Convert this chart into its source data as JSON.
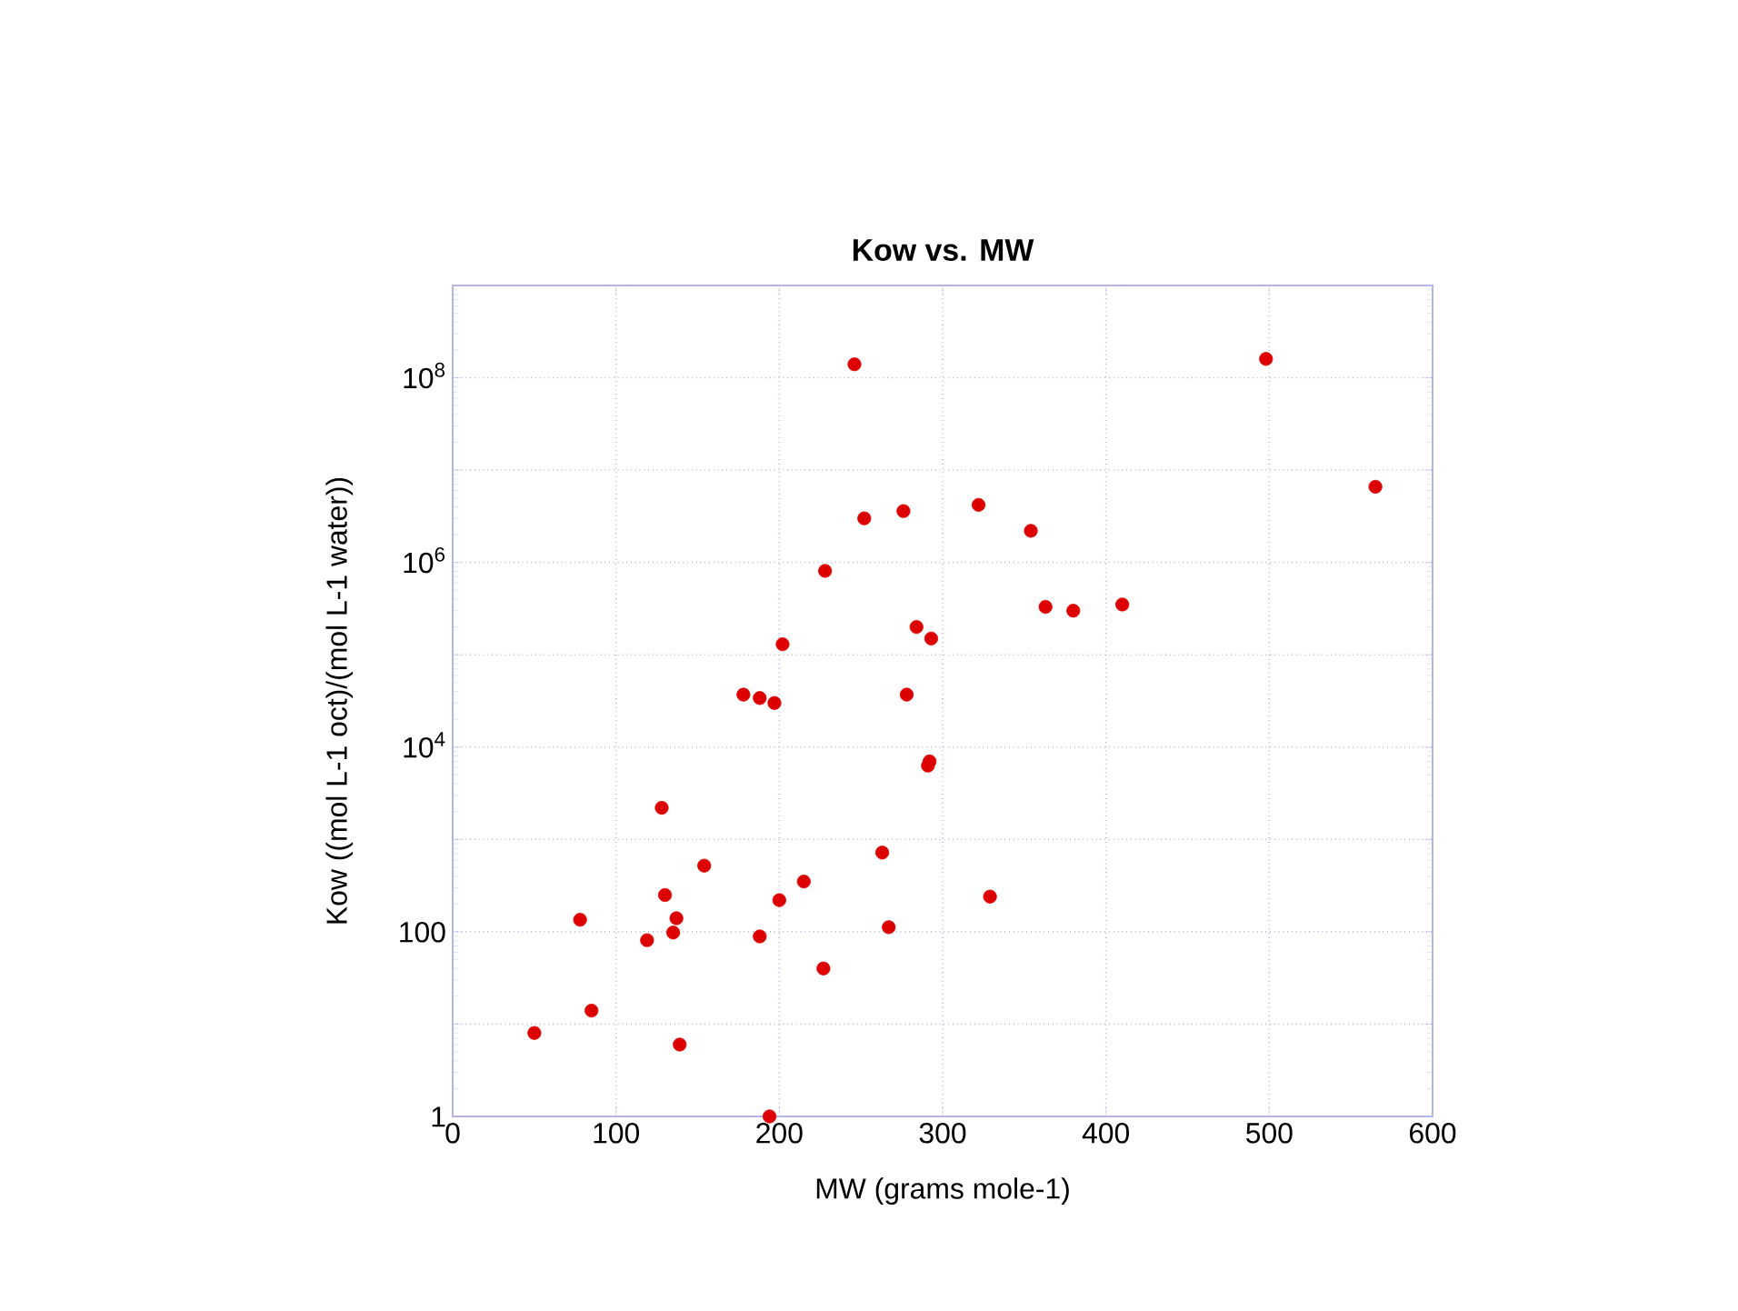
{
  "chart_data": {
    "type": "scatter",
    "title": "Kow vs. MW",
    "xlabel": "MW (grams mole-1)",
    "ylabel": "Kow ((mol L-1 oct)/(mol L-1 water))",
    "x": [
      50,
      78,
      85,
      119,
      128,
      130,
      135,
      137,
      139,
      154,
      178,
      188,
      197,
      202,
      228,
      246,
      252,
      276,
      284,
      293,
      278,
      291,
      292,
      188,
      200,
      215,
      263,
      267,
      227,
      194,
      498,
      565,
      322,
      354,
      363,
      380,
      410,
      329
    ],
    "series": [
      {
        "color": "#dd0000",
        "values": [
          8,
          135,
          14,
          81,
          2200,
          250,
          98,
          140,
          6,
          520,
          37000,
          34000,
          30000,
          130000,
          810000,
          140000000,
          3000000,
          3600000,
          200000,
          150000,
          37000,
          6300,
          7000,
          89,
          220,
          350,
          720,
          112,
          40,
          1,
          160000000,
          6600000,
          4200000,
          2200000,
          330000,
          300000,
          350000,
          240
        ]
      }
    ],
    "xlim": [
      0,
      600
    ],
    "xticks": [
      0,
      100,
      200,
      300,
      400,
      500,
      600
    ],
    "ylim": [
      1,
      1000000000
    ],
    "yticks": [
      {
        "value": 1,
        "label": "1"
      },
      {
        "value": 10,
        "label": null
      },
      {
        "value": 100,
        "label": "100"
      },
      {
        "value": 1000,
        "label": null
      },
      {
        "value": 10000,
        "label": "10$^{4}$"
      },
      {
        "value": 100000,
        "label": null
      },
      {
        "value": 1000000,
        "label": "10$^{6}$"
      },
      {
        "value": 10000000,
        "label": null
      },
      {
        "value": 100000000,
        "label": "10$^{8}$"
      },
      {
        "value": 1000000000,
        "label": null
      }
    ],
    "log": "y",
    "grid": true,
    "marker": "circle"
  }
}
